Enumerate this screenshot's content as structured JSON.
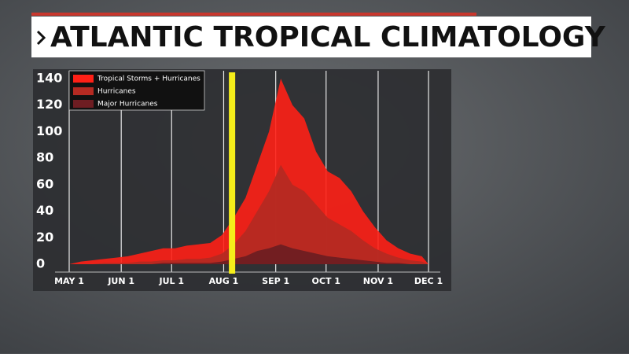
{
  "chart_data": {
    "type": "area",
    "title": "ATLANTIC TROPICAL CLIMATOLOGY",
    "x": [
      0,
      7,
      14,
      21,
      28,
      35,
      42,
      49,
      56,
      63,
      70,
      77,
      84,
      91,
      98,
      105,
      112,
      119,
      126,
      133,
      140,
      147,
      154,
      161,
      168,
      175,
      182,
      189,
      196,
      203,
      210,
      214
    ],
    "series": [
      {
        "name": "Tropical Storms + Hurricanes",
        "color": "#ff2016",
        "values": [
          0,
          2,
          3,
          4,
          5,
          6,
          8,
          10,
          12,
          12,
          14,
          15,
          16,
          22,
          35,
          50,
          75,
          100,
          140,
          120,
          110,
          85,
          70,
          65,
          55,
          40,
          28,
          18,
          12,
          8,
          6,
          0
        ]
      },
      {
        "name": "Hurricanes",
        "color": "#b52a22",
        "values": [
          0,
          0,
          0,
          1,
          1,
          1,
          2,
          2,
          3,
          3,
          4,
          4,
          5,
          8,
          15,
          25,
          40,
          55,
          75,
          60,
          55,
          45,
          35,
          30,
          25,
          18,
          12,
          8,
          5,
          3,
          2,
          0
        ]
      },
      {
        "name": "Major Hurricanes",
        "color": "#6e1d22",
        "values": [
          0,
          0,
          0,
          0,
          0,
          0,
          0,
          0,
          1,
          1,
          1,
          1,
          1,
          2,
          4,
          6,
          10,
          12,
          15,
          12,
          10,
          8,
          6,
          5,
          4,
          3,
          2,
          1,
          1,
          0,
          0,
          0
        ]
      }
    ],
    "xlim": [
      0,
      214
    ],
    "xticks": [
      {
        "value": 0,
        "label": "MAY 1"
      },
      {
        "value": 31,
        "label": "JUN 1"
      },
      {
        "value": 61,
        "label": "JUL 1"
      },
      {
        "value": 92,
        "label": "AUG 1"
      },
      {
        "value": 123,
        "label": "SEP 1"
      },
      {
        "value": 153,
        "label": "OCT 1"
      },
      {
        "value": 184,
        "label": "NOV 1"
      },
      {
        "value": 214,
        "label": "DEC 1"
      }
    ],
    "ylim": [
      0,
      140
    ],
    "yticks": [
      0,
      20,
      40,
      60,
      80,
      100,
      120,
      140
    ],
    "highlight_x": 97,
    "highlight_color": "#f5ee1a",
    "grid": true,
    "legend": "upper left"
  }
}
